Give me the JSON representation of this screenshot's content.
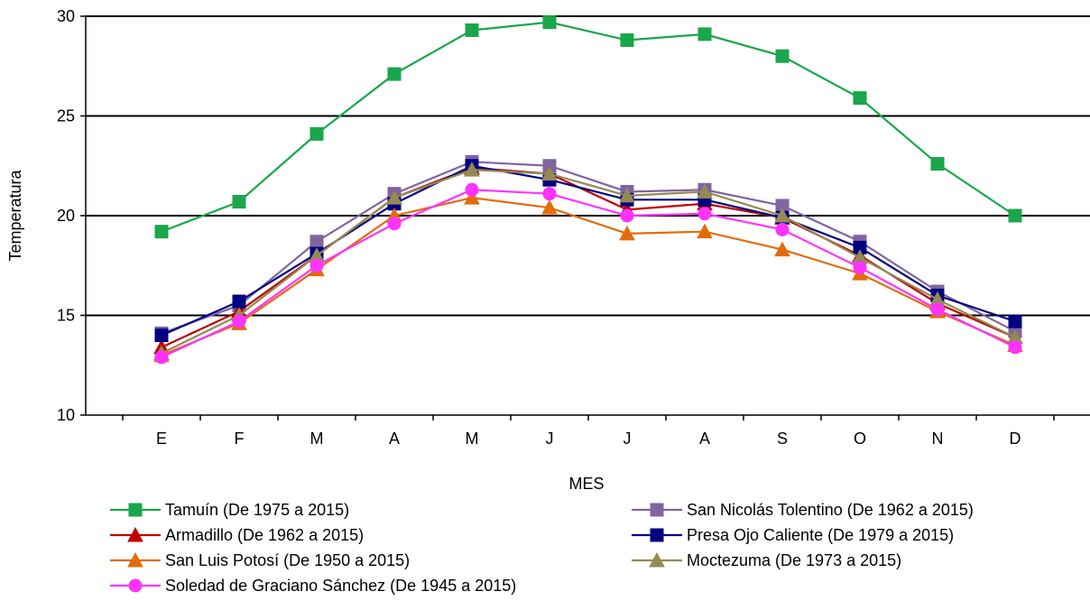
{
  "chart_data": {
    "type": "line",
    "title": "",
    "xlabel": "MES",
    "ylabel": "Temperatura",
    "ylim": [
      10,
      30
    ],
    "yticks": [
      10,
      15,
      20,
      25,
      30
    ],
    "grid": "horizontal",
    "legend_position": "bottom",
    "categories": [
      "E",
      "F",
      "M",
      "A",
      "M",
      "J",
      "J",
      "A",
      "S",
      "O",
      "N",
      "D"
    ],
    "series": [
      {
        "name": "Tamuín (De 1975 a 2015)",
        "color": "#1aa64a",
        "marker": "square",
        "values": [
          19.2,
          20.7,
          24.1,
          27.1,
          29.3,
          29.7,
          28.8,
          29.1,
          28.0,
          25.9,
          22.6,
          20.0
        ]
      },
      {
        "name": "San Nicolás Tolentino (De 1962 a 2015)",
        "color": "#8064a2",
        "marker": "square",
        "values": [
          14.1,
          15.5,
          18.7,
          21.1,
          22.7,
          22.5,
          21.2,
          21.3,
          20.5,
          18.7,
          16.2,
          14.2
        ]
      },
      {
        "name": "Armadillo (De 1962 a 2015)",
        "color": "#c00000",
        "marker": "triangle",
        "values": [
          13.4,
          15.2,
          18.0,
          20.9,
          22.4,
          22.1,
          20.3,
          20.6,
          19.9,
          18.0,
          15.6,
          13.9
        ]
      },
      {
        "name": "Presa Ojo Caliente (De 1979 a 2015)",
        "color": "#000080",
        "marker": "square",
        "values": [
          14.0,
          15.7,
          18.1,
          20.6,
          22.5,
          21.8,
          20.8,
          20.8,
          19.9,
          18.4,
          16.0,
          14.7
        ]
      },
      {
        "name": "San Luis Potosí (De 1950 a 2015)",
        "color": "#e36c0a",
        "marker": "triangle",
        "values": [
          13.0,
          14.6,
          17.3,
          20.0,
          20.9,
          20.4,
          19.1,
          19.2,
          18.3,
          17.1,
          15.2,
          13.5
        ]
      },
      {
        "name": "Moctezuma (De 1973 a 2015)",
        "color": "#948a54",
        "marker": "triangle",
        "values": [
          13.1,
          15.0,
          18.0,
          20.9,
          22.3,
          22.1,
          21.0,
          21.2,
          20.0,
          17.9,
          15.8,
          13.9
        ]
      },
      {
        "name": "Soledad de Graciano Sánchez (De 1945 a 2015)",
        "color": "#ff33ff",
        "marker": "circle",
        "values": [
          12.9,
          14.7,
          17.5,
          19.6,
          21.3,
          21.1,
          20.0,
          20.1,
          19.3,
          17.4,
          15.3,
          13.4
        ]
      }
    ]
  }
}
